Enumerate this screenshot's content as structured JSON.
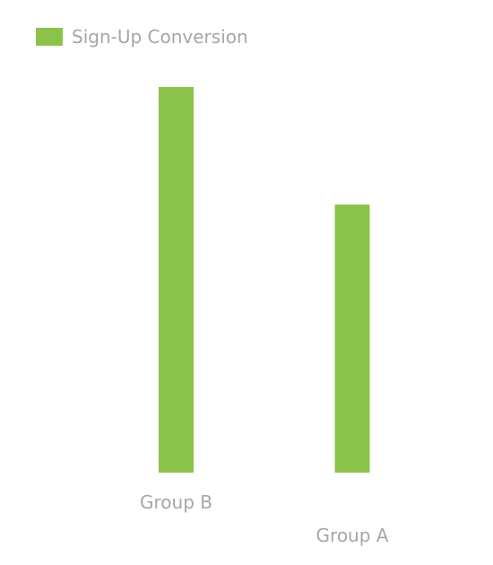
{
  "colors": {
    "series": "#8bc34a",
    "text": "#a6a6a6",
    "background": "#ffffff"
  },
  "chart_data": {
    "type": "bar",
    "title": "",
    "xlabel": "",
    "ylabel": "",
    "categories": [
      "Group B",
      "Group A"
    ],
    "series": [
      {
        "name": "Sign-Up Conversion",
        "values": [
          100,
          69.5
        ]
      }
    ],
    "ylim": [
      0,
      100
    ],
    "grid": false,
    "legend_position": "top-left"
  }
}
